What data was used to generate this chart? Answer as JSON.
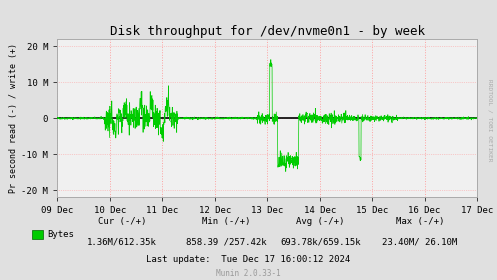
{
  "title": "Disk throughput for /dev/nvme0n1 - by week",
  "ylabel": "Pr second read (-) / write (+)",
  "xlabel_ticks": [
    "09 Dec",
    "10 Dec",
    "11 Dec",
    "12 Dec",
    "13 Dec",
    "14 Dec",
    "15 Dec",
    "16 Dec",
    "17 Dec"
  ],
  "ylim": [
    -22000000,
    22000000
  ],
  "yticks": [
    -20000000,
    -10000000,
    0,
    10000000,
    20000000
  ],
  "ytick_labels": [
    "-20 M",
    "-10 M",
    "0",
    "10 M",
    "20 M"
  ],
  "bg_color": "#e0e0e0",
  "plot_bg_color": "#f0f0f0",
  "grid_color": "#ff9999",
  "line_color": "#00cc00",
  "zero_line_color": "#000000",
  "legend_label": "Bytes",
  "legend_color": "#00cc00",
  "cur_label": "Cur (-/+)",
  "min_label": "Min (-/+)",
  "avg_label": "Avg (-/+)",
  "max_label": "Max (-/+)",
  "cur_val": "1.36M/612.35k",
  "min_val": "858.39 /257.42k",
  "avg_val": "693.78k/659.15k",
  "max_val": "23.40M/ 26.10M",
  "last_update": "Last update:  Tue Dec 17 16:00:12 2024",
  "munin_version": "Munin 2.0.33-1",
  "rrdtool_label": "RRDTOOL / TOBI OETIKER",
  "num_points": 2000,
  "seed": 42
}
